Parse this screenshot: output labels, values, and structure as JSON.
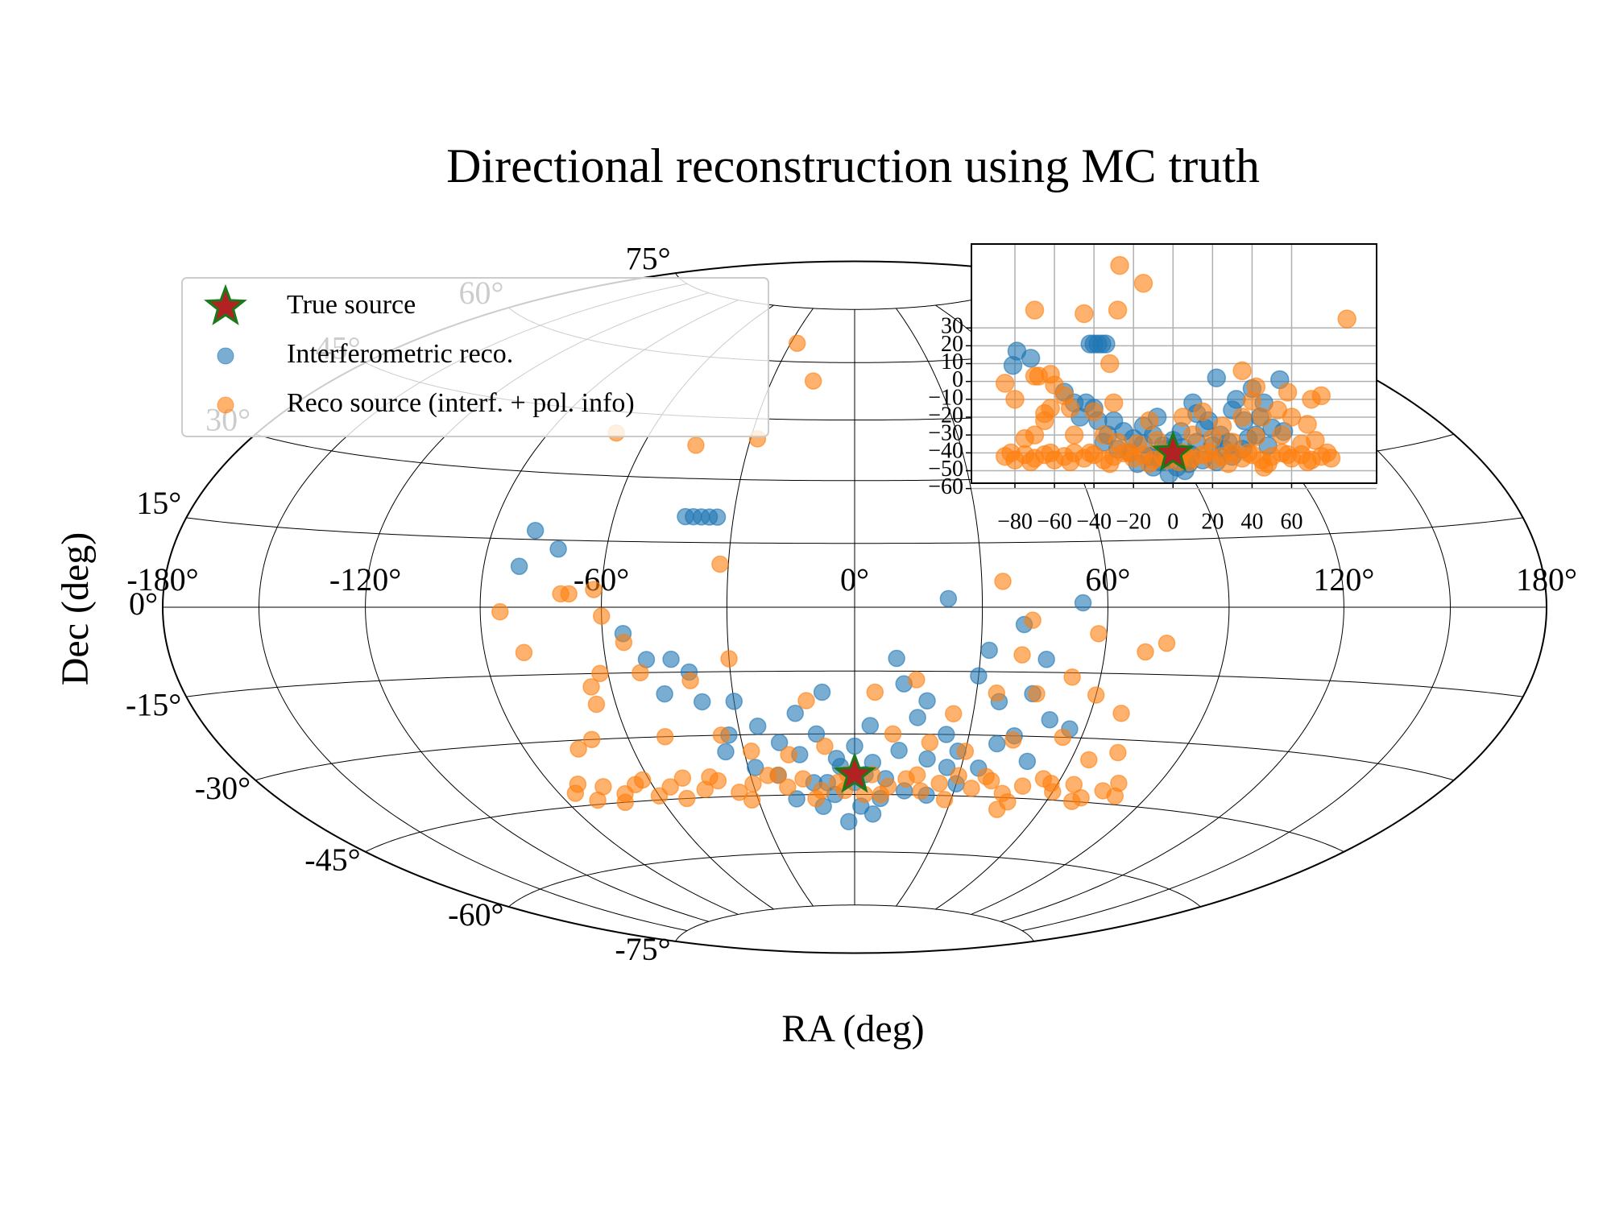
{
  "chart_data": {
    "type": "scatter",
    "projection": "hammer",
    "title": "Directional reconstruction using MC truth",
    "xlabel": "RA (deg)",
    "ylabel": "Dec (deg)",
    "xticks": [
      {
        "value": -180,
        "label": "-180°"
      },
      {
        "value": -120,
        "label": "-120°"
      },
      {
        "value": -60,
        "label": "-60°"
      },
      {
        "value": 0,
        "label": "0°"
      },
      {
        "value": 60,
        "label": "60°"
      },
      {
        "value": 120,
        "label": "120°"
      },
      {
        "value": 180,
        "label": "180°"
      }
    ],
    "yticks": [
      {
        "value": -75,
        "label": "-75°"
      },
      {
        "value": -60,
        "label": "-60°"
      },
      {
        "value": -45,
        "label": "-45°"
      },
      {
        "value": -30,
        "label": "-30°"
      },
      {
        "value": -15,
        "label": "-15°"
      },
      {
        "value": 0,
        "label": "0°"
      },
      {
        "value": 15,
        "label": "15°"
      },
      {
        "value": 30,
        "label": "30°"
      },
      {
        "value": 45,
        "label": "45°"
      },
      {
        "value": 60,
        "label": "60°"
      },
      {
        "value": 75,
        "label": "75°"
      }
    ],
    "meridians": [
      -150,
      -120,
      -90,
      -60,
      -30,
      0,
      30,
      60,
      90,
      120,
      150
    ],
    "grid": true,
    "legend": "upper left",
    "series": [
      {
        "name": "True source",
        "marker": "star",
        "color": "#b22222",
        "edgecolor": "#1a7a1a",
        "x": [
          0
        ],
        "values": [
          -40
        ]
      },
      {
        "name": "Interferometric reco.",
        "marker": "circle",
        "color": "#1f77b4",
        "x": [
          -79,
          -81,
          -72,
          -40,
          -38,
          -36,
          -34,
          -42,
          22,
          40,
          54,
          -55,
          -50,
          -44,
          -40,
          -47,
          -38,
          -30,
          -25,
          10,
          -8,
          4,
          30,
          32,
          36,
          46,
          42,
          50,
          16,
          24,
          -20,
          -15,
          -10,
          -5,
          0,
          5,
          12,
          20,
          28,
          35,
          -28,
          -22,
          -12,
          -6,
          2,
          8,
          15,
          22,
          30,
          -18,
          -2,
          6,
          -10,
          26,
          38,
          -33,
          18,
          -15,
          12,
          44,
          48,
          56,
          -35,
          0,
          3,
          -4,
          9,
          -8
        ],
        "values": [
          17,
          9,
          13,
          21,
          21,
          21,
          21,
          21,
          2,
          -4,
          1,
          -6,
          -12,
          -12,
          -15,
          -20,
          -22,
          -22,
          -28,
          -12,
          -20,
          -28,
          -16,
          -10,
          -22,
          -12,
          -30,
          -26,
          -26,
          -30,
          -32,
          -35,
          -30,
          -36,
          -33,
          -37,
          -34,
          -36,
          -34,
          -38,
          -38,
          -40,
          -42,
          -45,
          -48,
          -46,
          -44,
          -45,
          -42,
          -46,
          -52,
          -50,
          -48,
          -38,
          -32,
          -30,
          -22,
          -25,
          -18,
          -20,
          -36,
          -28,
          -34,
          -42,
          -40,
          -38,
          -41,
          -42
        ]
      },
      {
        "name": "Reco source (interf. + pol. info)",
        "marker": "circle",
        "color": "#ff7f0e",
        "x": [
          -85,
          -80,
          -70,
          -68,
          -62,
          -60,
          -55,
          -52,
          -62,
          -65,
          -65,
          -32,
          -15,
          -45,
          -28,
          35,
          42,
          40,
          58,
          70,
          75,
          68,
          60,
          53,
          45,
          35,
          25,
          15,
          5,
          -12,
          -30,
          -40,
          -50,
          -70,
          -75,
          -35,
          -28,
          -18,
          -8,
          10,
          20,
          30,
          42,
          55,
          65,
          72,
          -27,
          -70,
          88,
          -85,
          -80,
          -75,
          -70,
          -65,
          -60,
          -55,
          -50,
          -45,
          -40,
          -35,
          -30,
          -25,
          -20,
          -15,
          -10,
          -5,
          5,
          10,
          15,
          20,
          25,
          30,
          35,
          40,
          45,
          50,
          55,
          60,
          65,
          70,
          75,
          80,
          -82,
          -72,
          -62,
          -52,
          -42,
          -32,
          -22,
          -12,
          -2,
          8,
          18,
          28,
          38,
          48,
          58,
          68,
          78,
          46,
          -3,
          3
        ],
        "values": [
          -1,
          -10,
          3,
          3,
          4,
          -2,
          -8,
          -15,
          -15,
          -18,
          -22,
          10,
          55,
          38,
          40,
          6,
          -3,
          -11,
          -6,
          -10,
          -8,
          -24,
          -20,
          -16,
          -20,
          -20,
          -25,
          -17,
          -20,
          -22,
          -12,
          -17,
          -30,
          -30,
          -32,
          -30,
          -34,
          -35,
          -33,
          -30,
          -32,
          -34,
          -31,
          -30,
          -35,
          -33,
          65,
          40,
          35,
          -42,
          -44,
          -41,
          -43,
          -41,
          -44,
          -42,
          -40,
          -43,
          -41,
          -44,
          -42,
          -40,
          -43,
          -41,
          -44,
          -42,
          -40,
          -43,
          -41,
          -44,
          -42,
          -40,
          -43,
          -41,
          -44,
          -42,
          -40,
          -43,
          -41,
          -44,
          -42,
          -43,
          -40,
          -45,
          -40,
          -45,
          -40,
          -46,
          -40,
          -46,
          -40,
          -45,
          -40,
          -46,
          -40,
          -46,
          -41,
          -45,
          -40,
          -48,
          -44,
          -45
        ]
      }
    ],
    "inset": {
      "xlim": [
        -102,
        103
      ],
      "ylim": [
        -57,
        77
      ],
      "xticks": [
        {
          "value": -80,
          "label": "−80"
        },
        {
          "value": -60,
          "label": "−60"
        },
        {
          "value": -40,
          "label": "−40"
        },
        {
          "value": -20,
          "label": "−20"
        },
        0,
        20,
        40,
        60
      ],
      "yticks": [
        {
          "value": -60,
          "label": "−60"
        },
        {
          "value": -50,
          "label": "−50"
        },
        {
          "value": -40,
          "label": "−40"
        },
        {
          "value": -30,
          "label": "−30"
        },
        {
          "value": -20,
          "label": "−20"
        },
        {
          "value": -10,
          "label": "−10"
        },
        0,
        10,
        20,
        30
      ],
      "grid": true
    }
  }
}
